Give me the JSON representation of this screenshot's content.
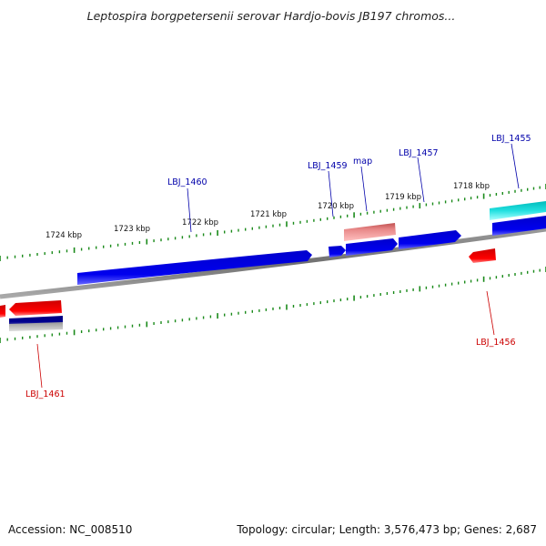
{
  "title": "Leptospira borgpetersenii serovar Hardjo-bovis JB197 chromos...",
  "footer": {
    "accession": "Accession: NC_008510",
    "summary": "Topology: circular; Length: 3,576,473 bp; Genes: 2,687"
  },
  "tick_labels": [
    "1724 kbp",
    "1723 kbp",
    "1722 kbp",
    "1721 kbp",
    "1720 kbp",
    "1719 kbp",
    "1718 kbp"
  ],
  "gene_labels": {
    "lbj1460": "LBJ_1460",
    "lbj1459": "LBJ_1459",
    "map": "map",
    "lbj1457": "LBJ_1457",
    "lbj1455": "LBJ_1455",
    "lbj1456": "LBJ_1456",
    "lbj1461": "LBJ_1461"
  },
  "colors": {
    "forward_strand": "#0000dd",
    "reverse_strand": "#dd0000",
    "backbone": "#808080",
    "ticks": "#1a8a1a",
    "label_forward": "#0000aa",
    "label_reverse": "#cc0000",
    "map_gene": "#e88888",
    "cyan_gene": "#22dddd"
  }
}
